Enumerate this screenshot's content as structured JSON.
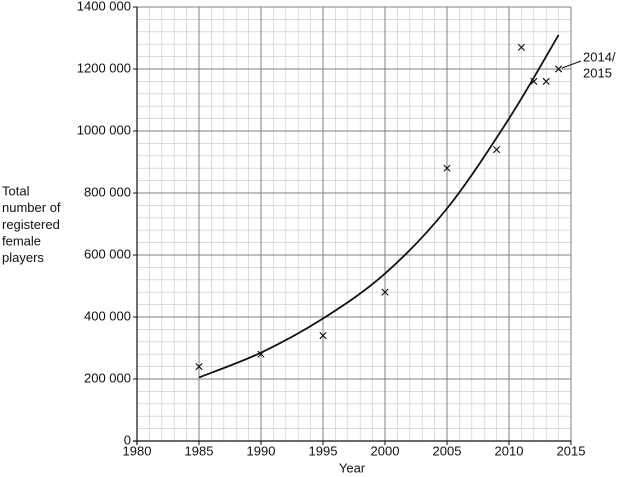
{
  "chart_data": {
    "type": "scatter",
    "xlabel": "Year",
    "ylabel": [
      "Total",
      "number of",
      "registered",
      "female",
      "players"
    ],
    "points": {
      "x": [
        1985,
        1990,
        1995,
        2000,
        2005,
        2009,
        2011,
        2012,
        2013,
        2014
      ],
      "y": [
        240000,
        280000,
        340000,
        480000,
        880000,
        940000,
        1270000,
        1160000,
        1160000,
        1200000
      ]
    },
    "curve": {
      "x": [
        1985,
        1990,
        1995,
        2000,
        2005,
        2010,
        2014
      ],
      "y": [
        205000,
        285000,
        395000,
        540000,
        750000,
        1040000,
        1310000
      ]
    },
    "annotation": [
      "2014/",
      "2015"
    ],
    "xlim": [
      1980,
      2015
    ],
    "xticks": [
      1980,
      1985,
      1990,
      1995,
      2000,
      2005,
      2010,
      2015
    ],
    "ylim": [
      0,
      1400000
    ],
    "yticks": [
      0,
      {
        "value": 200000,
        "label": "200 000"
      },
      {
        "value": 400000,
        "label": "400 000"
      },
      {
        "value": 600000,
        "label": "600 000"
      },
      {
        "value": 800000,
        "label": "800 000"
      },
      {
        "value": 1000000,
        "label": "1000 000"
      },
      {
        "value": 1200000,
        "label": "1200 000"
      },
      {
        "value": 1400000,
        "label": "1400 000"
      }
    ],
    "grid": true,
    "minor_divisions": 5
  }
}
